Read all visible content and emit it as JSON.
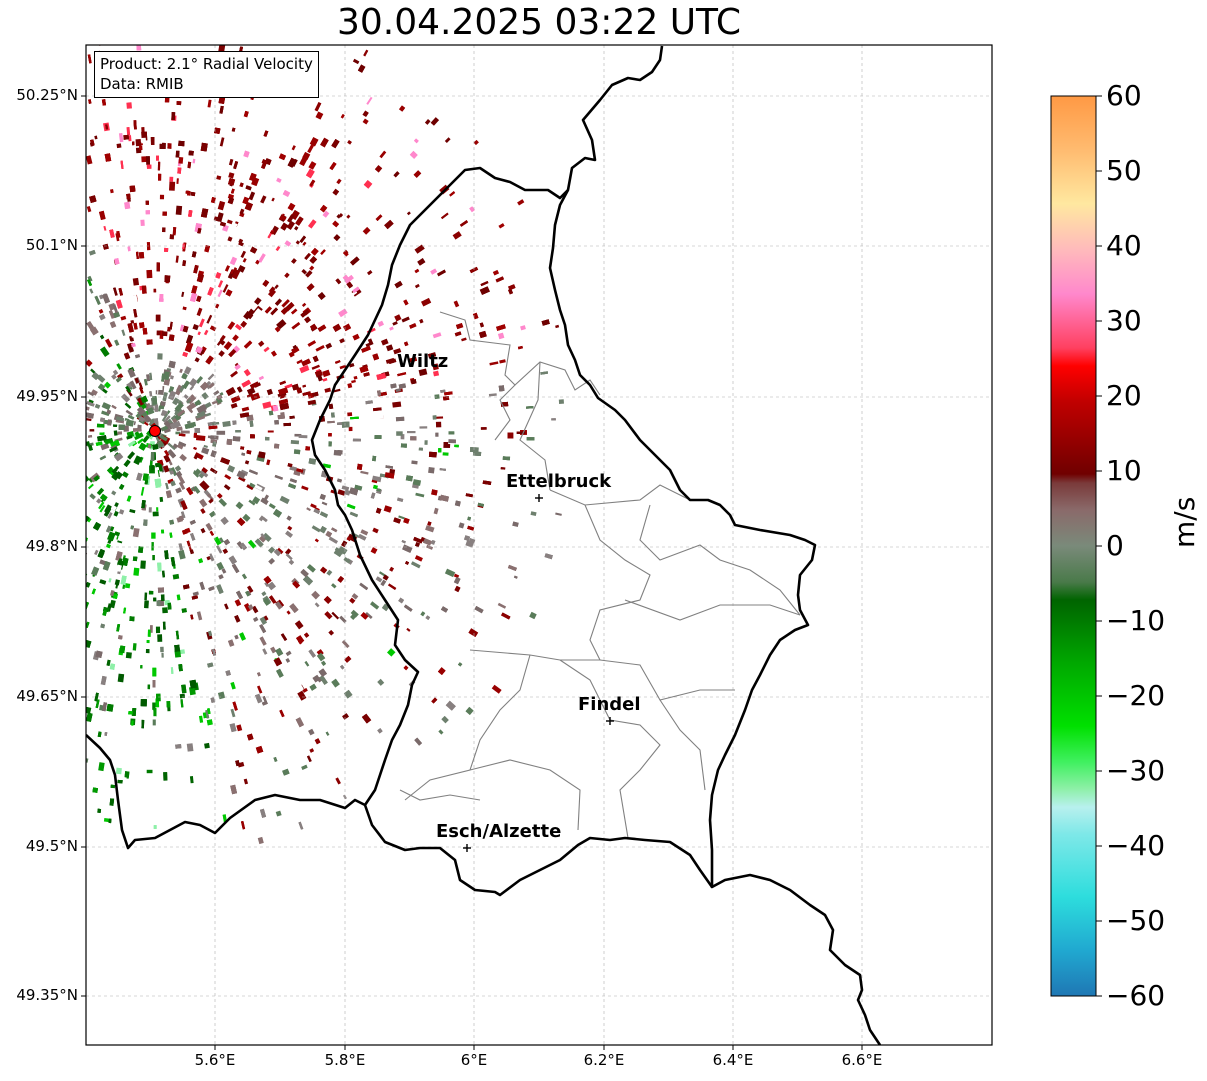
{
  "title": "30.04.2025 03:22 UTC",
  "info": {
    "product": "Product: 2.1° Radial Velocity",
    "data_source": "Data: RMIB"
  },
  "cities": [
    {
      "name": "Wiltz"
    },
    {
      "name": "Ettelbruck"
    },
    {
      "name": "Findel"
    },
    {
      "name": "Esch/Alzette"
    }
  ],
  "lat_ticks": [
    "50.25°N",
    "50.1°N",
    "49.95°N",
    "49.8°N",
    "49.65°N",
    "49.5°N",
    "49.35°N"
  ],
  "lon_ticks": [
    "5.6°E",
    "5.8°E",
    "6°E",
    "6.2°E",
    "6.4°E",
    "6.6°E"
  ],
  "colorbar": {
    "unit": "m/s",
    "min": -60,
    "max": 60,
    "ticks": [
      "60",
      "50",
      "40",
      "30",
      "20",
      "10",
      "0",
      "−10",
      "−20",
      "−30",
      "−40",
      "−50",
      "−60"
    ],
    "colors": {
      "strong_negative": "#1f77b4",
      "cyan": "#2ddddd",
      "light_green": "#8ef0a8",
      "green": "#00c800",
      "dark_green": "#006400",
      "gray_green": "#5a7c5a",
      "gray": "#888080",
      "dark_red": "#7a0000",
      "red": "#ee0000",
      "pink": "#ff88cc",
      "light_yellow": "#ffe8a0",
      "orange": "#ff9944"
    }
  },
  "radar_site": {
    "color": "#ff0000"
  }
}
